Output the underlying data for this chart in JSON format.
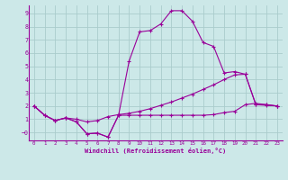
{
  "xlabel": "Windchill (Refroidissement éolien,°C)",
  "bg_color": "#cce8e8",
  "grid_color": "#aacccc",
  "line_color": "#990099",
  "xlim": [
    -0.5,
    23.5
  ],
  "ylim": [
    -0.6,
    9.6
  ],
  "xticks": [
    0,
    1,
    2,
    3,
    4,
    5,
    6,
    7,
    8,
    9,
    10,
    11,
    12,
    13,
    14,
    15,
    16,
    17,
    18,
    19,
    20,
    21,
    22,
    23
  ],
  "yticks": [
    0,
    1,
    2,
    3,
    4,
    5,
    6,
    7,
    8,
    9
  ],
  "ytick_labels": [
    "−0",
    "1",
    "2",
    "3",
    "4",
    "5",
    "6",
    "7",
    "8",
    "9"
  ],
  "line1_x": [
    0,
    1,
    2,
    3,
    4,
    5,
    6,
    7,
    8,
    9,
    10,
    11,
    12,
    13,
    14,
    15,
    16,
    17,
    18,
    19,
    20,
    21,
    22,
    23
  ],
  "line1_y": [
    2.0,
    1.3,
    0.9,
    1.1,
    0.8,
    -0.1,
    -0.05,
    -0.35,
    1.3,
    1.3,
    1.3,
    1.3,
    1.3,
    1.3,
    1.3,
    1.3,
    1.3,
    1.35,
    1.5,
    1.6,
    2.1,
    2.2,
    2.1,
    2.0
  ],
  "line2_x": [
    0,
    1,
    2,
    3,
    4,
    5,
    6,
    7,
    8,
    9,
    10,
    11,
    12,
    13,
    14,
    15,
    16,
    17,
    18,
    19,
    20,
    21,
    22,
    23
  ],
  "line2_y": [
    2.0,
    1.3,
    0.9,
    1.1,
    0.8,
    -0.1,
    -0.05,
    -0.35,
    1.3,
    5.4,
    7.6,
    7.7,
    8.2,
    9.2,
    9.2,
    8.4,
    6.8,
    6.5,
    4.5,
    4.6,
    4.4,
    2.1,
    2.1,
    2.0
  ],
  "line3_x": [
    0,
    1,
    2,
    3,
    4,
    5,
    6,
    7,
    8,
    9,
    10,
    11,
    12,
    13,
    14,
    15,
    16,
    17,
    18,
    19,
    20,
    21,
    22,
    23
  ],
  "line3_y": [
    2.0,
    1.3,
    0.9,
    1.1,
    1.0,
    0.8,
    0.9,
    1.2,
    1.35,
    1.45,
    1.6,
    1.8,
    2.05,
    2.3,
    2.6,
    2.9,
    3.25,
    3.6,
    4.0,
    4.35,
    4.4,
    2.1,
    2.05,
    2.0
  ]
}
